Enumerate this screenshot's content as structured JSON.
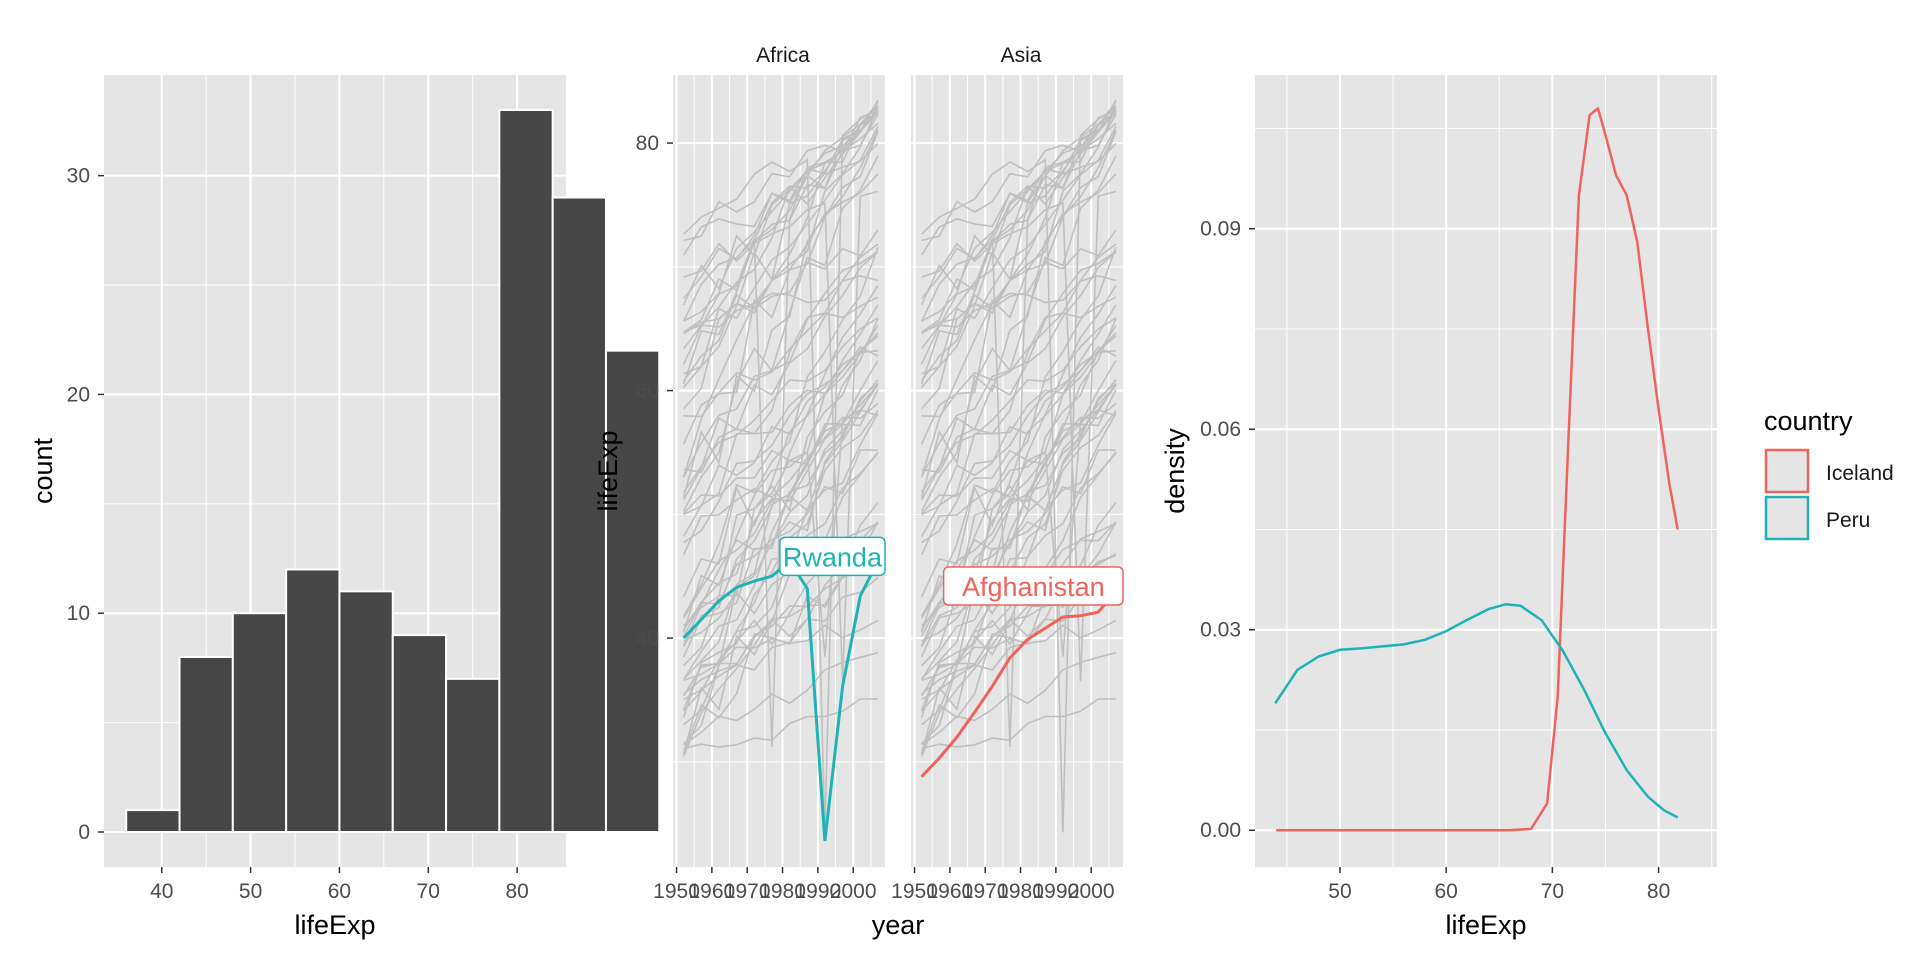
{
  "chart_data": [
    {
      "type": "bar",
      "xlabel": "lifeExp",
      "ylabel": "count",
      "xlim": [
        33.5,
        85.5
      ],
      "ylim": [
        -1.6,
        34.6
      ],
      "xticks": [
        40,
        50,
        60,
        70,
        80
      ],
      "yticks": [
        0,
        10,
        20,
        30
      ],
      "bin_width": 6,
      "bins": [
        {
          "start": 35,
          "end": 41,
          "count": 1
        },
        {
          "start": 41,
          "end": 47,
          "count": 8
        },
        {
          "start": 47,
          "end": 53,
          "count": 10
        },
        {
          "start": 53,
          "end": 59,
          "count": 12
        },
        {
          "start": 59,
          "end": 65,
          "count": 11
        },
        {
          "start": 65,
          "end": 71,
          "count": 9
        },
        {
          "start": 71,
          "end": 77,
          "count": 7
        },
        {
          "start": 77,
          "end": 83,
          "count": 33
        },
        {
          "start": 83,
          "end": 89,
          "count": 29
        },
        {
          "start": 89,
          "end": 95,
          "count": 22
        }
      ],
      "bar_fill": "#474747",
      "bar_outline": "#ffffff",
      "grid": true
    },
    {
      "type": "line",
      "facets": [
        "Africa",
        "Asia"
      ],
      "xlabel": "year",
      "ylabel": "lifeExp",
      "xlim": [
        1949,
        2009
      ],
      "ylim": [
        21.5,
        85.5
      ],
      "xticks": [
        1950,
        1960,
        1970,
        1980,
        1990,
        2000
      ],
      "yticks": [
        40,
        60,
        80
      ],
      "background_color": "#bfbfbf",
      "background_series_count": 60,
      "highlighted": [
        {
          "facet": "Africa",
          "label": "Rwanda",
          "color": "#1fb3b7",
          "x": [
            1952,
            1957,
            1962,
            1967,
            1972,
            1977,
            1982,
            1987,
            1992,
            1997,
            2002,
            2007
          ],
          "y": [
            40.0,
            41.5,
            43.0,
            44.1,
            44.6,
            45.0,
            46.2,
            44.0,
            23.6,
            36.1,
            43.4,
            46.2
          ]
        },
        {
          "facet": "Asia",
          "label": "Afghanistan",
          "color": "#f0635a",
          "x": [
            1952,
            1957,
            1962,
            1967,
            1972,
            1977,
            1982,
            1987,
            1992,
            1997,
            2002,
            2007
          ],
          "y": [
            28.8,
            30.3,
            32.0,
            34.0,
            36.1,
            38.4,
            39.9,
            40.8,
            41.7,
            41.8,
            42.1,
            43.8
          ]
        }
      ],
      "grid": true
    },
    {
      "type": "line",
      "xlabel": "lifeExp",
      "ylabel": "density",
      "xlim": [
        42,
        85.5
      ],
      "ylim": [
        -0.0055,
        0.113
      ],
      "xticks": [
        50,
        60,
        70,
        80
      ],
      "yticks": [
        "0.00",
        "0.03",
        "0.06",
        "0.09"
      ],
      "legend": {
        "title": "country",
        "position": "right"
      },
      "series": [
        {
          "name": "Iceland",
          "color": "#f0635a",
          "x": [
            44,
            50,
            60,
            66,
            68,
            69.5,
            70.5,
            71.5,
            72.5,
            73.5,
            74.3,
            75,
            76,
            77,
            78,
            79,
            80,
            81,
            81.8
          ],
          "y": [
            0,
            0,
            0,
            0,
            0.0002,
            0.004,
            0.02,
            0.058,
            0.095,
            0.107,
            0.108,
            0.104,
            0.098,
            0.095,
            0.088,
            0.075,
            0.063,
            0.052,
            0.045
          ]
        },
        {
          "name": "Peru",
          "color": "#1fb3b7",
          "x": [
            43.9,
            46,
            48,
            50,
            52,
            54,
            56,
            58,
            60,
            62,
            64,
            65.6,
            67,
            69,
            71,
            73,
            75,
            77,
            79,
            80.5,
            81.8
          ],
          "y": [
            0.019,
            0.024,
            0.026,
            0.027,
            0.0272,
            0.0275,
            0.0278,
            0.0285,
            0.0298,
            0.0315,
            0.0331,
            0.0338,
            0.0336,
            0.0314,
            0.0268,
            0.021,
            0.0145,
            0.009,
            0.005,
            0.003,
            0.0019
          ]
        }
      ],
      "grid": true
    }
  ],
  "colors": {
    "panel_background": "#e5e5e5",
    "grid_major": "#ffffff",
    "axis_text": "#4d4d4d",
    "title_text": "#000000",
    "label_text": "#1a1a1a"
  }
}
